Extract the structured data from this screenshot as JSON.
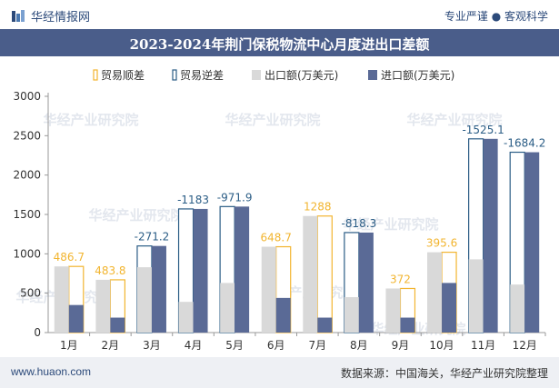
{
  "header": {
    "brand": "华经情报网",
    "tagline": "专业严谨 ● 客观科学"
  },
  "footer": {
    "site": "www.huaon.com",
    "source": "数据来源：中国海关，华经产业研究院整理"
  },
  "watermark": "华经产业研究院",
  "chart_data": {
    "type": "bar",
    "title": "2023-2024年荆门保税物流中心月度进出口差额",
    "categories": [
      "1月",
      "2月",
      "3月",
      "4月",
      "5月",
      "6月",
      "7月",
      "8月",
      "9月",
      "10月",
      "11月",
      "12月"
    ],
    "series": [
      {
        "name": "出口额(万美元)",
        "color": "#d9d9d9",
        "values": [
          840,
          670,
          830,
          390,
          630,
          1090,
          1480,
          450,
          560,
          1020,
          930,
          610
        ]
      },
      {
        "name": "进口额(万美元)",
        "color": "#5a6a96",
        "values": [
          350,
          190,
          1100,
          1570,
          1600,
          440,
          190,
          1270,
          190,
          630,
          2460,
          2290
        ]
      }
    ],
    "balance": {
      "labels": [
        "486.7",
        "483.8",
        "-271.2",
        "-1183",
        "-971.9",
        "648.7",
        "1288",
        "-818.3",
        "372",
        "395.6",
        "-1525.1",
        "-1684.2"
      ],
      "surplus_name": "贸易顺差",
      "deficit_name": "贸易逆差",
      "surplus_color": "#f2b530",
      "deficit_color": "#2b5d86"
    },
    "ylim": [
      0,
      3000
    ],
    "yticks": [
      0,
      500,
      1000,
      1500,
      2000,
      2500,
      3000
    ],
    "legend_placement": "top-center",
    "grid": false
  }
}
